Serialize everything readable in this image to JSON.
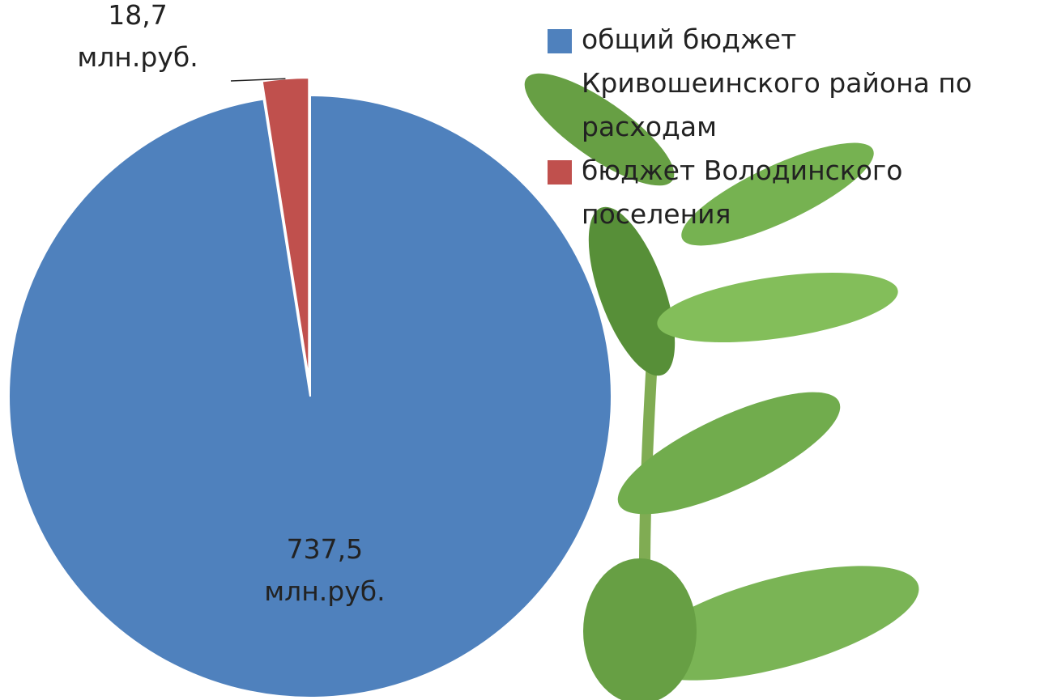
{
  "chart_data": {
    "type": "pie",
    "categories": [
      "общий бюджет Кривошеинского района по расходам",
      "бюджет Володинского поселения"
    ],
    "values": [
      737.5,
      18.7
    ],
    "value_labels": [
      "737,5 млн.руб.",
      "18,7 млн.руб."
    ],
    "colors": [
      "#4f81bd",
      "#c0504d"
    ],
    "legend": "top-right"
  }
}
